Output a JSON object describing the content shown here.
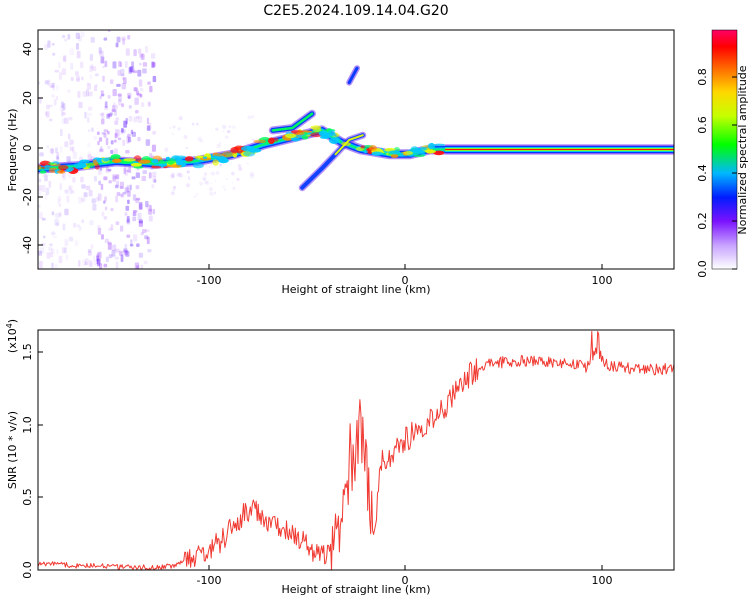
{
  "figure": {
    "title": "C2E5.2024.109.14.04.G20"
  },
  "colors": {
    "snr_line": "#f03a32",
    "ridge_colors": [
      "#6d2bf4",
      "#0038ff",
      "#00c8ff",
      "#00ff5a",
      "#e8ff00",
      "#ff8a00",
      "#ff0f0f"
    ]
  },
  "chart_data": [
    {
      "type": "heatmap",
      "title": "",
      "xlabel": "Height of straight line (km)",
      "ylabel": "Frequency (Hz)",
      "xlim": [
        -190,
        135
      ],
      "ylim": [
        -50,
        50
      ],
      "xticks": [
        -100,
        0,
        100
      ],
      "xtick_labels": [
        "-100",
        "0",
        "100"
      ],
      "yticks": [
        -40,
        -20,
        0,
        20,
        40
      ],
      "ytick_labels": [
        "-40",
        "-20",
        "0",
        "20",
        "40"
      ],
      "colorbar": {
        "label": "Normalized spectral amplitude",
        "range": [
          0,
          1
        ],
        "ticks": [
          0.0,
          0.2,
          0.4,
          0.6,
          0.8
        ],
        "tick_labels": [
          "0.0",
          "0.2",
          "0.4",
          "0.6",
          "0.8"
        ],
        "colors": [
          "#ffffff",
          "#c7a2ff",
          "#7b12ff",
          "#001dff",
          "#00b7ff",
          "#00ff00",
          "#c5ff00",
          "#ffd800",
          "#ff6a00",
          "#ff0000",
          "#ff0066"
        ]
      },
      "main_ridge": [
        {
          "x": -190,
          "y": -8
        },
        {
          "x": -170,
          "y": -7
        },
        {
          "x": -150,
          "y": -5
        },
        {
          "x": -130,
          "y": -6
        },
        {
          "x": -110,
          "y": -5
        },
        {
          "x": -90,
          "y": -2
        },
        {
          "x": -75,
          "y": 2
        },
        {
          "x": -60,
          "y": 5
        },
        {
          "x": -45,
          "y": 8
        },
        {
          "x": -35,
          "y": 3
        },
        {
          "x": -25,
          "y": 0
        },
        {
          "x": -10,
          "y": -2
        },
        {
          "x": 0,
          "y": -2
        },
        {
          "x": 10,
          "y": 0
        },
        {
          "x": 30,
          "y": 0
        },
        {
          "x": 135,
          "y": 0
        }
      ],
      "upper_branch": [
        {
          "x": -70,
          "y": 8
        },
        {
          "x": -60,
          "y": 9
        },
        {
          "x": -50,
          "y": 15
        }
      ],
      "lower_branch": [
        {
          "x": -55,
          "y": -16
        },
        {
          "x": -45,
          "y": -8
        },
        {
          "x": -38,
          "y": -2
        },
        {
          "x": -31,
          "y": 4
        },
        {
          "x": -24,
          "y": 6
        }
      ],
      "isolated_blob": [
        {
          "x": -31,
          "y": 28
        },
        {
          "x": -27,
          "y": 34
        }
      ],
      "noise_bands": [
        {
          "x_start": -190,
          "x_end": -160,
          "intensity": 0.18
        },
        {
          "x_start": -160,
          "x_end": -130,
          "intensity": 0.42
        }
      ]
    },
    {
      "type": "line",
      "title": "",
      "xlabel": "Height of straight line (km)",
      "ylabel": "SNR (10 * v/v)",
      "y_exponent_label": "(x10",
      "y_exponent_superscript": "4",
      "y_exponent_suffix": ")",
      "xlim": [
        -190,
        135
      ],
      "ylim": [
        0,
        1.65
      ],
      "xticks": [
        -100,
        0,
        100
      ],
      "xtick_labels": [
        "-100",
        "0",
        "100"
      ],
      "yticks": [
        0.0,
        0.5,
        1.0,
        1.5
      ],
      "ytick_labels": [
        "0.0",
        "0.5",
        "1.0",
        "1.5"
      ],
      "series": [
        {
          "name": "",
          "x": [
            -190,
            -180,
            -170,
            -160,
            -150,
            -140,
            -130,
            -120,
            -110,
            -100,
            -95,
            -90,
            -85,
            -80,
            -75,
            -70,
            -65,
            -60,
            -55,
            -50,
            -45,
            -40,
            -35,
            -30,
            -27,
            -25,
            -22,
            -20,
            -18,
            -15,
            -10,
            -5,
            0,
            5,
            10,
            15,
            20,
            25,
            30,
            35,
            40,
            50,
            60,
            70,
            80,
            90,
            95,
            100,
            110,
            120,
            130,
            135
          ],
          "y": [
            0.04,
            0.04,
            0.03,
            0.03,
            0.02,
            0.02,
            0.02,
            0.03,
            0.08,
            0.16,
            0.22,
            0.3,
            0.38,
            0.42,
            0.36,
            0.33,
            0.3,
            0.26,
            0.2,
            0.12,
            0.09,
            0.18,
            0.3,
            0.72,
            0.86,
            0.98,
            0.72,
            0.38,
            0.24,
            0.72,
            0.8,
            0.86,
            0.92,
            0.98,
            1.03,
            1.08,
            1.16,
            1.24,
            1.34,
            1.4,
            1.42,
            1.43,
            1.44,
            1.43,
            1.42,
            1.4,
            1.52,
            1.41,
            1.39,
            1.38,
            1.38,
            1.38
          ]
        }
      ]
    }
  ]
}
